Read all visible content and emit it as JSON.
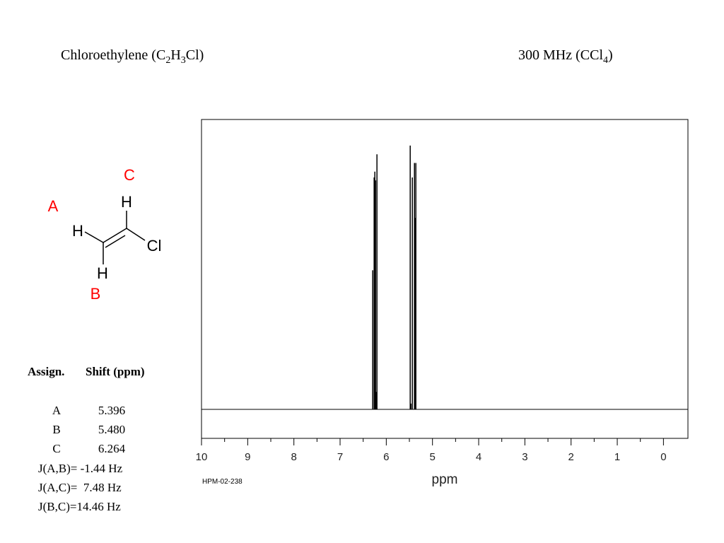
{
  "title": [
    {
      "text": "Chloroethylene (C"
    },
    {
      "text": "2",
      "sub": true
    },
    {
      "text": "H"
    },
    {
      "text": "3",
      "sub": true
    },
    {
      "text": "Cl)"
    }
  ],
  "conditions": [
    {
      "text": "300 MHz (CCl"
    },
    {
      "text": "4",
      "sub": true
    },
    {
      "text": ")"
    }
  ],
  "molecule": {
    "atoms": [
      {
        "label": "C",
        "color": "#ff0000"
      },
      {
        "label": "H",
        "color": "#000000"
      },
      {
        "label": "A",
        "color": "#ff0000"
      },
      {
        "label": "H",
        "color": "#000000"
      },
      {
        "label": "Cl",
        "color": "#000000"
      },
      {
        "label": "H",
        "color": "#000000"
      },
      {
        "label": "B",
        "color": "#ff0000"
      }
    ]
  },
  "table": {
    "header": [
      "Assign.",
      "Shift (ppm)"
    ],
    "rows": [
      [
        "A",
        "5.396"
      ],
      [
        "B",
        "5.480"
      ],
      [
        "C",
        "6.264"
      ]
    ],
    "couplings": [
      "J(A,B)= -1.44 Hz",
      "J(A,C)=  7.48 Hz",
      "J(B,C)=14.46 Hz"
    ]
  },
  "chart_data": {
    "type": "spectrum",
    "x": [
      6.294,
      6.263,
      6.248,
      6.233,
      6.217,
      6.202,
      5.482,
      5.467,
      5.436,
      5.39,
      5.375,
      5.36
    ],
    "values": [
      0.48,
      0.8,
      0.82,
      0.79,
      0.06,
      0.88,
      0.91,
      0.02,
      0.8,
      0.85,
      0.66,
      0.85
    ],
    "color": "#000000",
    "xlim": [
      10,
      -0.53
    ],
    "ylim": [
      -0.1,
      1
    ],
    "xticks": [
      10,
      9,
      8,
      7,
      6,
      5,
      4,
      3,
      2,
      1,
      0
    ],
    "minor_xticks": [
      9.5,
      8.5,
      7.5,
      6.5,
      5.5,
      4.5,
      3.5,
      2.5,
      1.5,
      0.5
    ],
    "xlabel": "ppm",
    "code": "HPM-02-238"
  }
}
